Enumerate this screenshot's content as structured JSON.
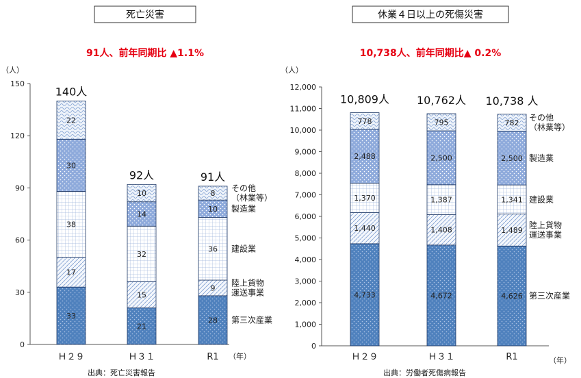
{
  "colors": {
    "accent": "#e60012",
    "segment_fill": [
      "#4f81bd",
      "#dce6f1",
      "#e9eff7",
      "#8eaadb",
      "#c5d3ea"
    ]
  },
  "legend": [
    "第三次産業",
    "陸上貨物\n運送事業",
    "建設業",
    "製造業",
    "その他\n（林業等）"
  ],
  "chart_data": [
    {
      "type": "bar",
      "title": "死亡災害",
      "headline": "91人、前年同期比 ▲1.1%",
      "ylabel": "（人）",
      "xunit": "（年）",
      "ylim": [
        0,
        150
      ],
      "yticks": [
        "0",
        "30",
        "60",
        "90",
        "120",
        "150"
      ],
      "categories": [
        "Ｈ２９",
        "Ｈ３１",
        "R1"
      ],
      "series": [
        {
          "name": "第三次産業",
          "values": [
            33,
            21,
            28
          ]
        },
        {
          "name": "陸上貨物\n運送事業",
          "values": [
            17,
            15,
            9
          ]
        },
        {
          "name": "建設業",
          "values": [
            38,
            32,
            36
          ]
        },
        {
          "name": "製造業",
          "values": [
            30,
            14,
            10
          ]
        },
        {
          "name": "その他\n（林業等）",
          "values": [
            22,
            10,
            8
          ]
        }
      ],
      "totals": [
        "140人",
        "92人",
        "91人"
      ],
      "source": "出典：死亡災害報告",
      "grid": false
    },
    {
      "type": "bar",
      "title": "休業４日以上の死傷災害",
      "headline": "10,738人、前年同期比▲ 0.2%",
      "ylabel": "（人）",
      "xunit": "（年）",
      "ylim": [
        0,
        12000
      ],
      "yticks": [
        "0",
        "1,000",
        "2,000",
        "3,000",
        "4,000",
        "5,000",
        "6,000",
        "7,000",
        "8,000",
        "9,000",
        "10,000",
        "11,000",
        "12,000"
      ],
      "categories": [
        "Ｈ２９",
        "Ｈ３１",
        "R1"
      ],
      "series": [
        {
          "name": "第三次産業",
          "values": [
            4733,
            4672,
            4626
          ]
        },
        {
          "name": "陸上貨物\n運送事業",
          "values": [
            1440,
            1408,
            1489
          ]
        },
        {
          "name": "建設業",
          "values": [
            1370,
            1387,
            1341
          ]
        },
        {
          "name": "製造業",
          "values": [
            2488,
            2500,
            2500
          ]
        },
        {
          "name": "その他\n（林業等）",
          "values": [
            778,
            795,
            782
          ]
        }
      ],
      "totals": [
        "10,809人",
        "10,762人",
        "10,738 人"
      ],
      "source": "出典：労働者死傷病報告",
      "grid": false
    }
  ]
}
